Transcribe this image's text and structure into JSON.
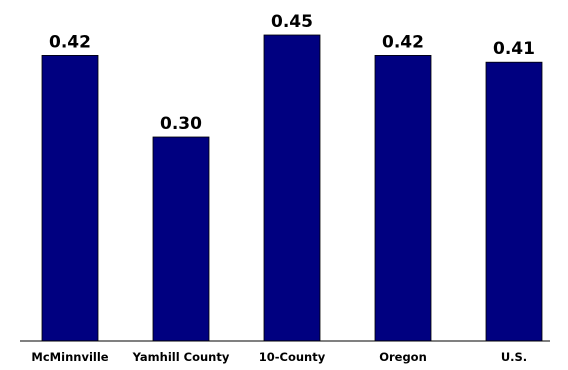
{
  "chart_data": {
    "type": "bar",
    "categories": [
      "McMinnville",
      "Yamhill County",
      "10-County",
      "Oregon",
      "U.S."
    ],
    "values": [
      0.42,
      0.3,
      0.45,
      0.42,
      0.41
    ],
    "value_labels": [
      "0.42",
      "0.30",
      "0.45",
      "0.42",
      "0.41"
    ],
    "title": "",
    "xlabel": "",
    "ylabel": "",
    "ylim": [
      0,
      0.5
    ],
    "grid": false,
    "legend": "none",
    "bar_color": "#000080"
  }
}
